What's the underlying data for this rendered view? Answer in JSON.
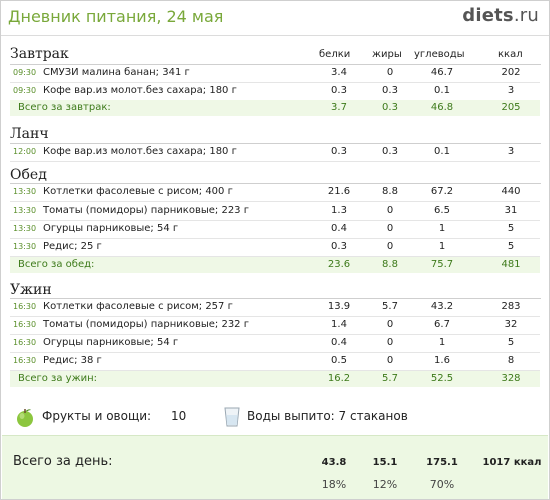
{
  "header": {
    "title": "Дневник питания, 24 мая",
    "logo_main": "diets",
    "logo_suffix": ".ru"
  },
  "columns": {
    "protein": "белки",
    "fat": "жиры",
    "carbs": "углеводы",
    "kcal": "ккал"
  },
  "meals": [
    {
      "title": "Завтрак",
      "items": [
        {
          "time": "09:30",
          "name": "СМУЗИ малина банан; 341 г",
          "protein": "3.4",
          "fat": "0",
          "carbs": "46.7",
          "kcal": "202"
        },
        {
          "time": "09:30",
          "name": "Кофе вар.из молот.без сахара; 180 г",
          "protein": "0.3",
          "fat": "0.3",
          "carbs": "0.1",
          "kcal": "3"
        }
      ],
      "total": {
        "label": "Всего за завтрак:",
        "protein": "3.7",
        "fat": "0.3",
        "carbs": "46.8",
        "kcal": "205"
      }
    },
    {
      "title": "Ланч",
      "items": [
        {
          "time": "12:00",
          "name": "Кофе вар.из молот.без сахара; 180 г",
          "protein": "0.3",
          "fat": "0.3",
          "carbs": "0.1",
          "kcal": "3"
        }
      ]
    },
    {
      "title": "Обед",
      "items": [
        {
          "time": "13:30",
          "name": "Котлетки фасолевые с рисом; 400 г",
          "protein": "21.6",
          "fat": "8.8",
          "carbs": "67.2",
          "kcal": "440"
        },
        {
          "time": "13:30",
          "name": "Томаты (помидоры) парниковые; 223 г",
          "protein": "1.3",
          "fat": "0",
          "carbs": "6.5",
          "kcal": "31"
        },
        {
          "time": "13:30",
          "name": "Огурцы парниковые; 54 г",
          "protein": "0.4",
          "fat": "0",
          "carbs": "1",
          "kcal": "5"
        },
        {
          "time": "13:30",
          "name": "Редис; 25 г",
          "protein": "0.3",
          "fat": "0",
          "carbs": "1",
          "kcal": "5"
        }
      ],
      "total": {
        "label": "Всего за обед:",
        "protein": "23.6",
        "fat": "8.8",
        "carbs": "75.7",
        "kcal": "481"
      }
    },
    {
      "title": "Ужин",
      "items": [
        {
          "time": "16:30",
          "name": "Котлетки фасолевые с рисом; 257 г",
          "protein": "13.9",
          "fat": "5.7",
          "carbs": "43.2",
          "kcal": "283"
        },
        {
          "time": "16:30",
          "name": "Томаты (помидоры) парниковые; 232 г",
          "protein": "1.4",
          "fat": "0",
          "carbs": "6.7",
          "kcal": "32"
        },
        {
          "time": "16:30",
          "name": "Огурцы парниковые; 54 г",
          "protein": "0.4",
          "fat": "0",
          "carbs": "1",
          "kcal": "5"
        },
        {
          "time": "16:30",
          "name": "Редис; 38 г",
          "protein": "0.5",
          "fat": "0",
          "carbs": "1.6",
          "kcal": "8"
        }
      ],
      "total": {
        "label": "Всего за ужин:",
        "protein": "16.2",
        "fat": "5.7",
        "carbs": "52.5",
        "kcal": "328"
      }
    }
  ],
  "extras": {
    "fruit_label": "Фрукты и овощи:",
    "fruit_value": "10",
    "water_label": "Воды выпито: 7 стаканов"
  },
  "day_total": {
    "label": "Всего за день:",
    "protein": "43.8",
    "fat": "15.1",
    "carbs": "175.1",
    "kcal": "1017 ккал",
    "protein_pct": "18%",
    "fat_pct": "12%",
    "carbs_pct": "70%"
  },
  "colors": {
    "accent": "#79a83a",
    "time": "#5a8f2a",
    "total_bg": "#eff8e6",
    "day_bg": "#edf8e3"
  }
}
